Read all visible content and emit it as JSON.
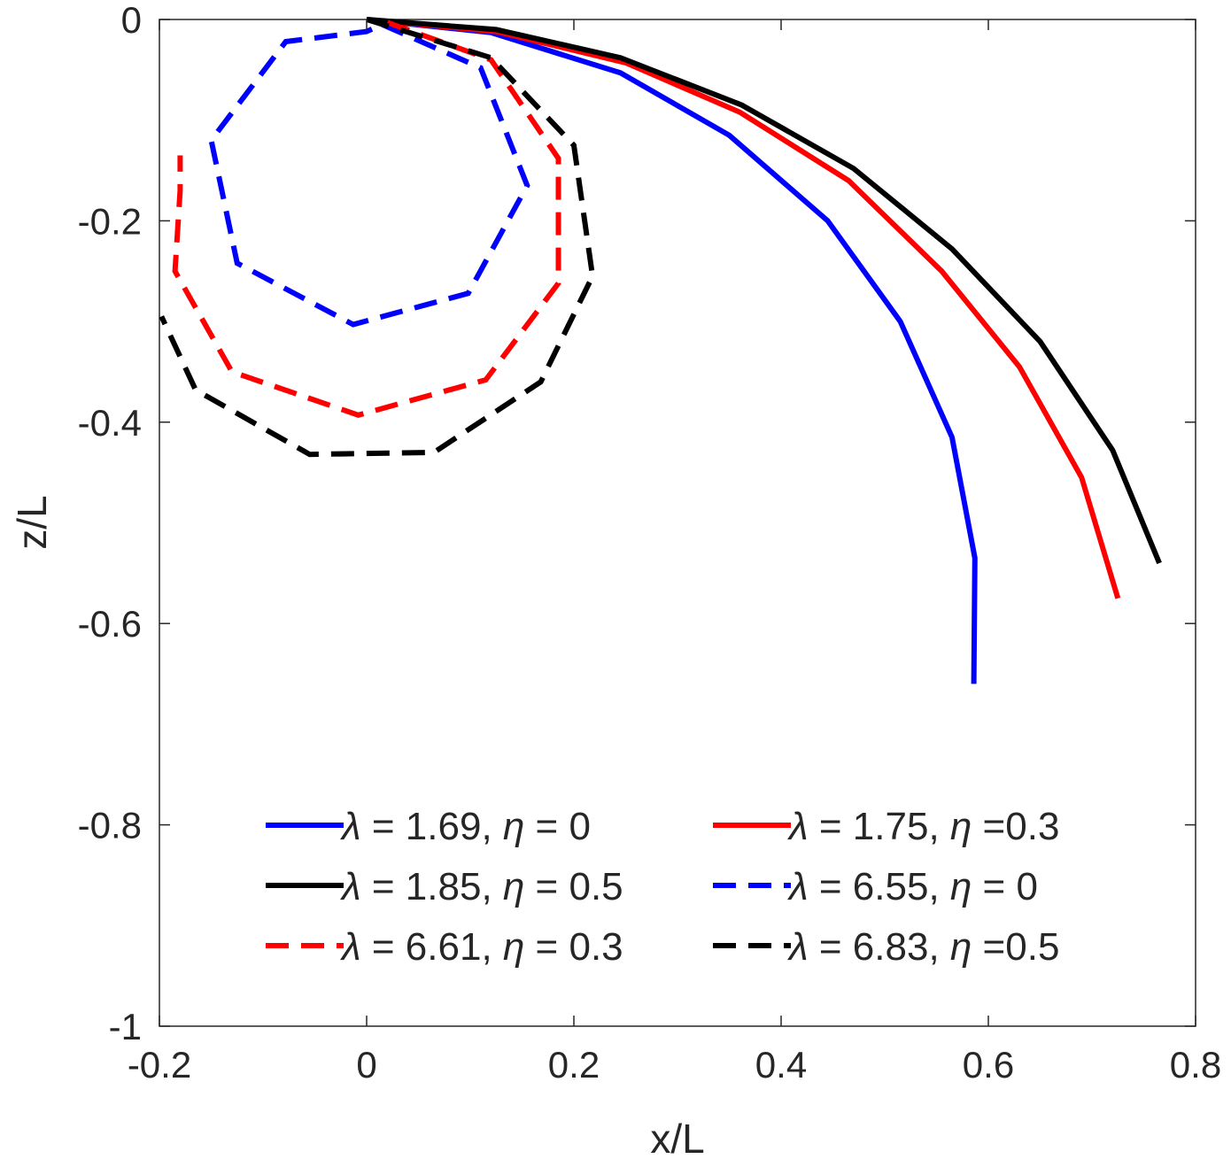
{
  "chart_data": {
    "type": "line",
    "title": "",
    "xlabel": "x/L",
    "ylabel": "z/L",
    "xlim": [
      -0.2,
      0.8
    ],
    "ylim": [
      -1,
      0
    ],
    "xticks": [
      -0.2,
      0,
      0.2,
      0.4,
      0.6,
      0.8
    ],
    "xtick_labels": [
      "-0.2",
      "0",
      "0.2",
      "0.4",
      "0.6",
      "0.8"
    ],
    "yticks": [
      0,
      -0.2,
      -0.4,
      -0.6,
      -0.8,
      -1
    ],
    "ytick_labels": [
      "0",
      "-0.2",
      "-0.4",
      "-0.6",
      "-0.8",
      "-1"
    ],
    "grid": false,
    "legend_position": "bottom",
    "series": [
      {
        "name": "λ = 1.69, η = 0",
        "label_lambda": "1.69",
        "label_eta": " = 0",
        "color": "#0000ff",
        "style": "solid",
        "x": [
          0,
          0.12,
          0.245,
          0.35,
          0.445,
          0.515,
          0.565,
          0.587,
          0.586
        ],
        "y": [
          0,
          -0.013,
          -0.053,
          -0.115,
          -0.2,
          -0.3,
          -0.415,
          -0.535,
          -0.66
        ]
      },
      {
        "name": "λ = 1.75, η =0.3",
        "label_lambda": "1.75",
        "label_eta": " =0.3",
        "color": "#ff0000",
        "style": "solid",
        "x": [
          0,
          0.125,
          0.25,
          0.36,
          0.465,
          0.555,
          0.63,
          0.69,
          0.725
        ],
        "y": [
          0,
          -0.012,
          -0.043,
          -0.092,
          -0.16,
          -0.25,
          -0.345,
          -0.455,
          -0.575
        ]
      },
      {
        "name": "λ = 1.85, η = 0.5",
        "label_lambda": "1.85",
        "label_eta": " = 0.5",
        "color": "#000000",
        "style": "solid",
        "x": [
          0,
          0.125,
          0.245,
          0.362,
          0.47,
          0.565,
          0.65,
          0.72,
          0.765
        ],
        "y": [
          0,
          -0.01,
          -0.038,
          -0.085,
          -0.148,
          -0.228,
          -0.32,
          -0.428,
          -0.54
        ]
      },
      {
        "name": "λ = 6.55, η = 0",
        "label_lambda": "6.55",
        "label_eta": " = 0",
        "color": "#0000ff",
        "style": "dashed",
        "x": [
          0.015,
          0.11,
          0.155,
          0.098,
          -0.013,
          -0.125,
          -0.15,
          -0.078,
          0.0,
          0.015
        ],
        "y": [
          -0.005,
          -0.048,
          -0.165,
          -0.272,
          -0.303,
          -0.242,
          -0.12,
          -0.022,
          -0.012,
          -0.005
        ]
      },
      {
        "name": "λ = 6.61, η = 0.3",
        "label_lambda": "6.61",
        "label_eta": " = 0.3",
        "color": "#ff0000",
        "style": "dashed",
        "x": [
          0.02,
          0.12,
          0.185,
          0.185,
          0.115,
          -0.008,
          -0.13,
          -0.185,
          -0.18,
          -0.18
        ],
        "y": [
          -0.003,
          -0.04,
          -0.138,
          -0.262,
          -0.358,
          -0.393,
          -0.35,
          -0.25,
          -0.17,
          -0.135
        ]
      },
      {
        "name": "λ = 6.83, η =0.5",
        "label_lambda": "6.83",
        "label_eta": " =0.5",
        "color": "#000000",
        "style": "dashed",
        "x": [
          0.0,
          0.12,
          0.2,
          0.218,
          0.168,
          0.065,
          -0.055,
          -0.165,
          -0.198
        ],
        "y": [
          0,
          -0.038,
          -0.125,
          -0.255,
          -0.36,
          -0.43,
          -0.432,
          -0.368,
          -0.295
        ]
      }
    ]
  }
}
